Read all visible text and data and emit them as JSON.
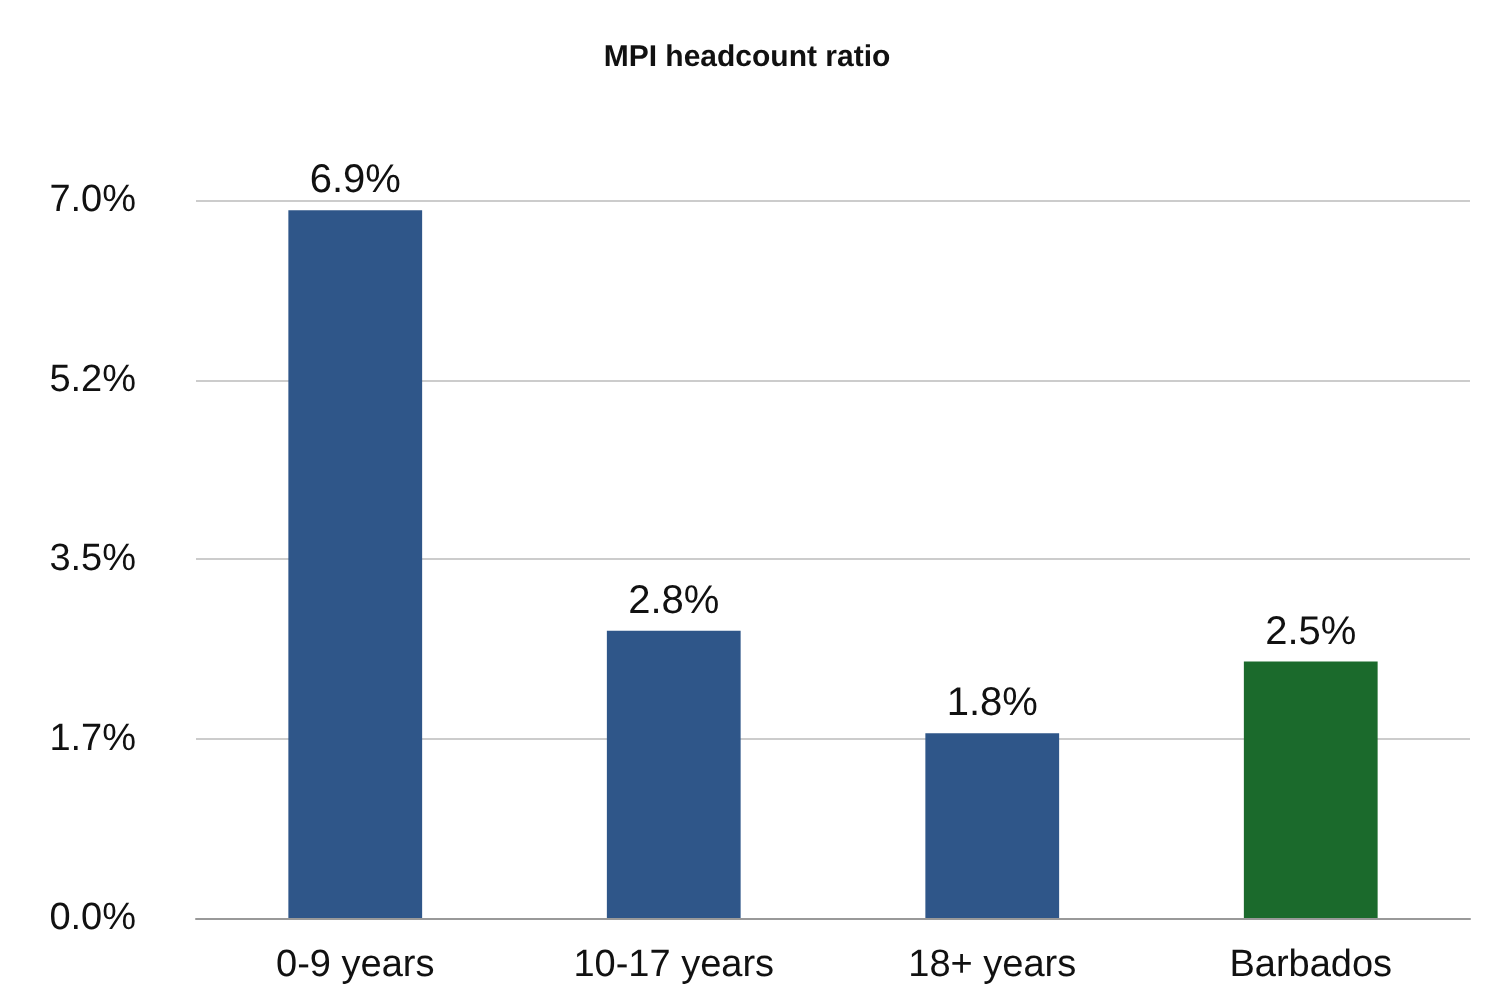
{
  "chart_data": {
    "type": "bar",
    "title": "MPI headcount ratio",
    "categories": [
      "0-9 years",
      "10-17 years",
      "18+ years",
      "Barbados"
    ],
    "values": [
      6.9,
      2.8,
      1.8,
      2.5
    ],
    "colors": [
      "#2f5689",
      "#2f5689",
      "#2f5689",
      "#1b6a2c"
    ],
    "value_labels": [
      "6.9%",
      "2.8%",
      "1.8%",
      "2.5%"
    ],
    "ylim": [
      0,
      7
    ],
    "yticks": [
      {
        "value": 0,
        "label": "0.0%"
      },
      {
        "value": 1.75,
        "label": "1.7%"
      },
      {
        "value": 3.5,
        "label": "3.5%"
      },
      {
        "value": 5.25,
        "label": "5.2%"
      },
      {
        "value": 7,
        "label": "7.0%"
      }
    ],
    "grid": true
  }
}
